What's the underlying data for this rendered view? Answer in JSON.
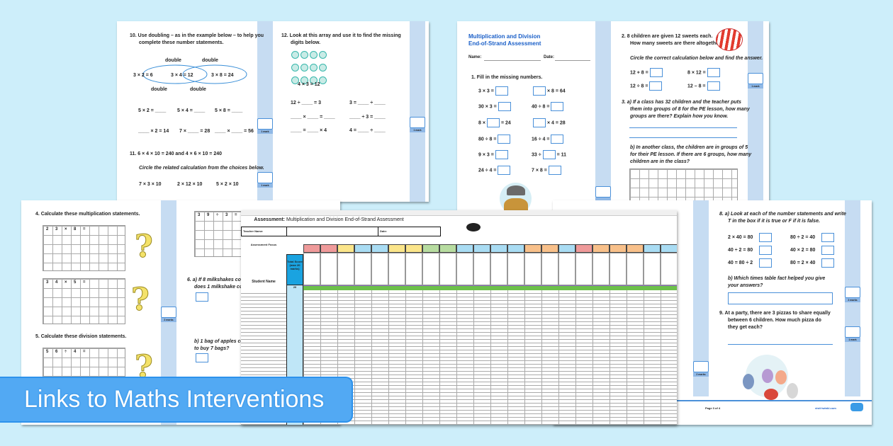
{
  "banner": {
    "text": "Links to Maths Interventions",
    "color": "#52a9f3"
  },
  "page_a": {
    "q10": {
      "line1": "10.  Use doubling – as in the example below – to help you",
      "line2": "complete these number statements.",
      "double_labels": [
        "double",
        "double",
        "double",
        "double"
      ],
      "chain": [
        "3 × 2 = 6",
        "3 × 4 = 12",
        "3 × 8 = 24"
      ],
      "row1": [
        "5 × 2 = ____",
        "5 × 4 = ____",
        "5 × 8 = ____"
      ],
      "row2": [
        "____ × 2 = 14",
        "7 × ____ = 28",
        "____ × ____ = 56"
      ]
    },
    "q11": {
      "line1": "11.  6 × 4 × 10 = 240  and  4 × 6 × 10 = 240",
      "line2": "Circle the related calculation from the choices below.",
      "choices": [
        "7 × 3 × 10",
        "2 × 12 × 10",
        "5 × 2 × 10"
      ]
    },
    "q12": {
      "line1": "12.  Look at this array and use it to find the missing",
      "line2": "digits below.",
      "fact": "4 × 3 = 12",
      "rows": [
        "12 ÷ ____ = 3",
        "3 = ____ ÷ ____",
        "____ × ____ = ____",
        "____ ÷ 3 = ____",
        "____ = ____ × 4",
        "4 = ____ ÷ ____"
      ]
    },
    "marks": [
      "1 mark",
      "1 mark",
      "1 mark"
    ]
  },
  "page_b": {
    "title": "Multiplication and Division",
    "subtitle": "End-of-Strand Assessment",
    "name_label": "Name:",
    "date_label": "Date:",
    "q1": "1.  Fill in the missing numbers.",
    "q1_rows": [
      [
        "3 × 3 =",
        "",
        "× 8 = 64"
      ],
      [
        "30 × 3 =",
        "40 ÷ 8 =",
        ""
      ],
      [
        "8 ×",
        "= 24",
        "× 4 = 28"
      ],
      [
        "80 ÷ 8 =",
        "16 ÷ 4 =",
        ""
      ],
      [
        "9 × 3 =",
        "33 ÷",
        "= 11"
      ],
      [
        "24 ÷ 4 =",
        "7 × 8 =",
        ""
      ]
    ],
    "q2": {
      "line1": "2.  8 children are given 12 sweets each.",
      "line2": "How many sweets are there altogether?",
      "line3": "Circle the correct calculation below and find the answer.",
      "calcs": [
        "12 + 8 =",
        "8 × 12 =",
        "12 ÷ 8 =",
        "12 – 8 ="
      ]
    },
    "q3a": [
      "3.  a) If a class has 32 children and the teacher puts",
      "them into groups of 8 for the PE lesson, how many",
      "groups are there? Explain how you know."
    ],
    "q3b": [
      "b) In another class, the children are in groups of 5",
      "for their PE lesson. If there are 6 groups, how many",
      "children are in the class?"
    ],
    "marks": [
      "1 mark"
    ],
    "title_color": "#1a5fc8"
  },
  "page_c": {
    "q4": "4.  Calculate these multiplication statements.",
    "grids": [
      [
        "2",
        "3",
        "×",
        "8",
        "="
      ],
      [
        "3",
        "4",
        "×",
        "5",
        "="
      ],
      [
        "5",
        "6",
        "÷",
        "4",
        "="
      ],
      [
        "3",
        "9",
        "÷",
        "3",
        "="
      ]
    ],
    "q5": "5.  Calculate these division statements.",
    "q6a": [
      "6.  a) If 8 milkshakes cost",
      "does 1 milkshake cost"
    ],
    "q6b": [
      "b) 1 bag of apples cost",
      "to buy 7 bags?"
    ],
    "marks": [
      "2 marks"
    ]
  },
  "page_d": {
    "q8a": [
      "8.  a) Look at each of the number statements and write",
      "T in the box if it is true or F if it is false."
    ],
    "statements": [
      "2 × 40 = 80",
      "80 ÷ 2 = 40",
      "40 ÷ 2 = 80",
      "40 × 2 = 80",
      "40 = 80 ÷ 2",
      "80 = 2 × 40"
    ],
    "q8b": [
      "b) Which times table fact helped you give",
      "your answers?"
    ],
    "q9": [
      "9.  At a party, there are 3 pizzas to share equally",
      "between 6 children. How much pizza do",
      "they get each?"
    ],
    "marks": [
      "2 marks",
      "1 mark",
      "2 marks"
    ],
    "footer_page": "Page 3 of 4",
    "footer_site": "visit twinkl.com"
  },
  "sheet": {
    "assessment_label": "Assessment:",
    "title": "Multiplication and Division End-of-Strand Assessment",
    "teacher_label": "Teacher Name:",
    "date_label": "Date:",
    "focus_label": "Assessment Focus",
    "total_label": "Total Score (max 20 marks)",
    "student_label": "Student Name",
    "max_score": "20",
    "focus_colors": [
      "#ef9a9a",
      "#ef9a9a",
      "#fbe58a",
      "#a9dcf3",
      "#a9dcf3",
      "#fbe58a",
      "#fbe58a",
      "#b7dca0",
      "#b7dca0",
      "#a9dcf3",
      "#a9dcf3",
      "#a9dcf3",
      "#a9dcf3",
      "#f8c08a",
      "#f8c08a",
      "#a9dcf3",
      "#ef9a9a",
      "#f8c08a",
      "#f8c08a",
      "#f8c08a",
      "#a9dcf3",
      "#a9dcf3"
    ],
    "total_color": "#1aa3e0",
    "band_color": "#6cc04a"
  }
}
